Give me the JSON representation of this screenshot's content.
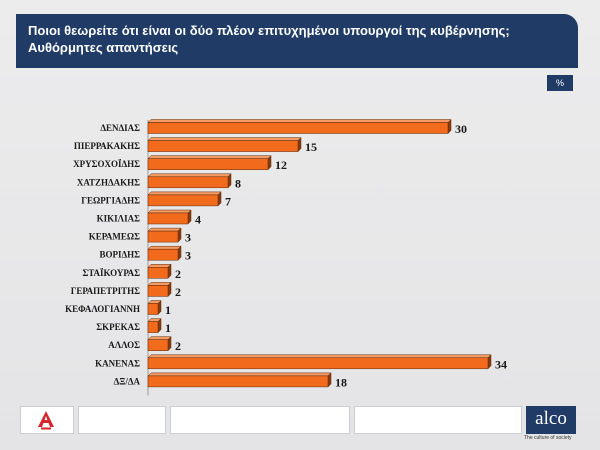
{
  "header": {
    "title_line1": "Ποιοι θεωρείτε ότι είναι οι δύο πλέον επιτυχημένοι υπουργοί της κυβέρνησης;",
    "title_line2": "Αυθόρμητες απαντήσεις"
  },
  "unit_label": "%",
  "footer": {
    "alco_logo": "alco",
    "alco_tagline": "The culture of society",
    "alpha_logo": "A"
  },
  "colors": {
    "bar_face": "#f26b1d",
    "bar_side": "#8a3a0c",
    "bar_top": "#f59a62",
    "title_bg": "#1f3b66"
  },
  "chart_data": {
    "type": "bar",
    "orientation": "horizontal",
    "categories": [
      "ΔΕΝΔΙΑΣ",
      "ΠΙΕΡΡΑΚΑΚΗΣ",
      "ΧΡΥΣΟΧΟΪΔΗΣ",
      "ΧΑΤΖΗΔΑΚΗΣ",
      "ΓΕΩΡΓΙΑΔΗΣ",
      "ΚΙΚΙΛΙΑΣ",
      "ΚΕΡΑΜΕΩΣ",
      "ΒΟΡΙΔΗΣ",
      "ΣΤΑΪΚΟΥΡΑΣ",
      "ΓΕΡΑΠΕΤΡΙΤΗΣ",
      "ΚΕΦΑΛΟΓΙΑΝΝΗ",
      "ΣΚΡΕΚΑΣ",
      "ΑΛΛΟΣ",
      "ΚΑΝΕΝΑΣ",
      "ΔΞ/ΔΑ"
    ],
    "values": [
      30,
      15,
      12,
      8,
      7,
      4,
      3,
      3,
      2,
      2,
      1,
      1,
      2,
      34,
      18
    ],
    "value_labels": [
      "30",
      "15",
      "12",
      "8",
      "7",
      "4",
      "3",
      "3",
      "2",
      "2",
      "1",
      "1",
      "2",
      "34",
      "18"
    ],
    "xlim": [
      0,
      35
    ],
    "grid": false,
    "legend": "none"
  }
}
